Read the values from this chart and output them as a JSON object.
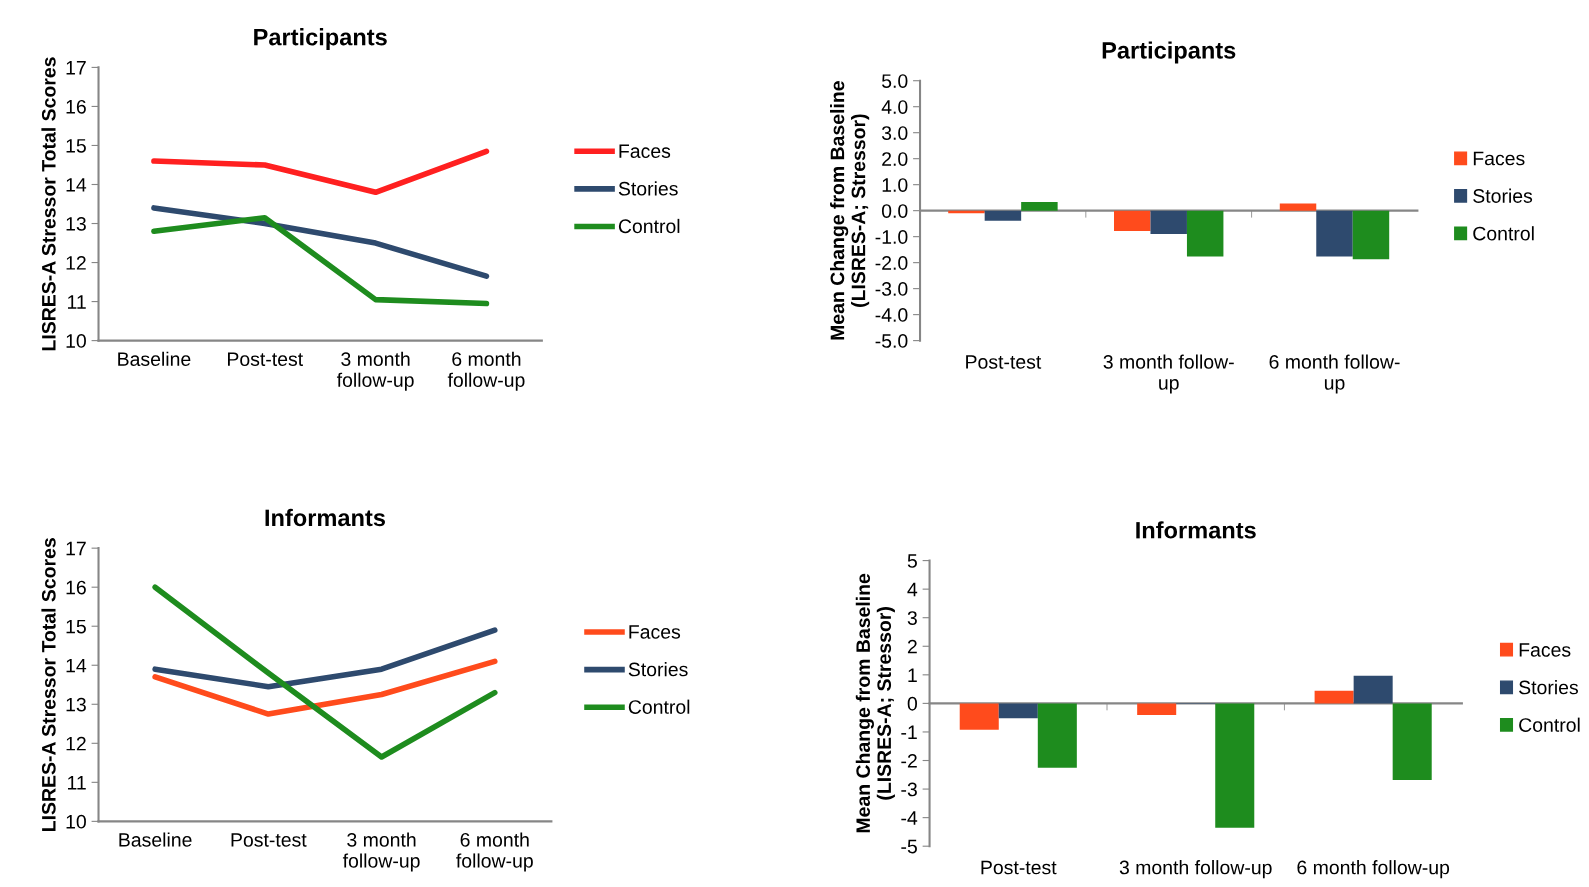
{
  "chart_data": [
    {
      "type": "line",
      "title": "Participants",
      "ylabel": "LISRES-A Stressor Total Scores",
      "categories": [
        "Baseline",
        "Post-test",
        "3 month\nfollow-up",
        "6 month\nfollow-up"
      ],
      "ylim": [
        10,
        17
      ],
      "yticks": [
        10,
        11,
        12,
        13,
        14,
        15,
        16,
        17
      ],
      "legend": "right",
      "grid": false,
      "series": [
        {
          "name": "Faces",
          "color": "#ff2020",
          "values": [
            14.6,
            14.5,
            13.8,
            14.85
          ]
        },
        {
          "name": "Stories",
          "color": "#2e4a6e",
          "values": [
            13.4,
            13.0,
            12.5,
            11.65
          ]
        },
        {
          "name": "Control",
          "color": "#1e8c1e",
          "values": [
            12.8,
            13.15,
            11.05,
            10.95
          ]
        }
      ]
    },
    {
      "type": "bar",
      "title": "Participants",
      "ylabel": "Mean Change from Baseline\n(LISRES-A; Stressor)",
      "categories": [
        "Post-test",
        "3 month follow-\nup",
        "6 month follow-\nup"
      ],
      "ylim": [
        -5,
        5
      ],
      "yticks": [
        {
          "value": -5,
          "label": "-5.0"
        },
        {
          "value": -4,
          "label": "-4.0"
        },
        {
          "value": -3,
          "label": "-3.0"
        },
        {
          "value": -2,
          "label": "-2.0"
        },
        {
          "value": -1,
          "label": "-1.0"
        },
        {
          "value": 0,
          "label": "0.0"
        },
        {
          "value": 1,
          "label": "1.0"
        },
        {
          "value": 2,
          "label": "2.0"
        },
        {
          "value": 3,
          "label": "3.0"
        },
        {
          "value": 4,
          "label": "4.0"
        },
        {
          "value": 5,
          "label": "5.0"
        }
      ],
      "legend": "right",
      "series": [
        {
          "name": "Faces",
          "color": "#ff4b1c",
          "values": [
            -0.1,
            -0.78,
            0.28
          ]
        },
        {
          "name": "Stories",
          "color": "#2e4a6e",
          "values": [
            -0.39,
            -0.9,
            -1.76
          ]
        },
        {
          "name": "Control",
          "color": "#1e8c1e",
          "values": [
            0.33,
            -1.76,
            -1.87
          ]
        }
      ]
    },
    {
      "type": "line",
      "title": "Informants",
      "ylabel": "LISRES-A Stressor Total Scores",
      "categories": [
        "Baseline",
        "Post-test",
        "3 month\nfollow-up",
        "6 month\nfollow-up"
      ],
      "ylim": [
        10,
        17
      ],
      "yticks": [
        10,
        11,
        12,
        13,
        14,
        15,
        16,
        17
      ],
      "legend": "right",
      "grid": false,
      "series": [
        {
          "name": "Faces",
          "color": "#ff4b1c",
          "values": [
            13.7,
            12.75,
            13.25,
            14.1
          ]
        },
        {
          "name": "Stories",
          "color": "#2e4a6e",
          "values": [
            13.9,
            13.45,
            13.9,
            14.9
          ]
        },
        {
          "name": "Control",
          "color": "#1e8c1e",
          "values": [
            16.0,
            13.8,
            11.65,
            13.3
          ]
        }
      ]
    },
    {
      "type": "bar",
      "title": "Informants",
      "ylabel": "Mean Change from Baseline\n(LISRES-A; Stressor)",
      "categories": [
        "Post-test",
        "3 month follow-up",
        "6 month follow-up"
      ],
      "ylim": [
        -5,
        5
      ],
      "yticks": [
        -5,
        -4,
        -3,
        -2,
        -1,
        0,
        1,
        2,
        3,
        4,
        5
      ],
      "legend": "right",
      "series": [
        {
          "name": "Faces",
          "color": "#ff4b1c",
          "values": [
            -0.92,
            -0.41,
            0.44
          ]
        },
        {
          "name": "Stories",
          "color": "#2e4a6e",
          "values": [
            -0.52,
            -0.02,
            0.97
          ]
        },
        {
          "name": "Control",
          "color": "#1e8c1e",
          "values": [
            -2.25,
            -4.35,
            -2.68
          ]
        }
      ]
    }
  ]
}
